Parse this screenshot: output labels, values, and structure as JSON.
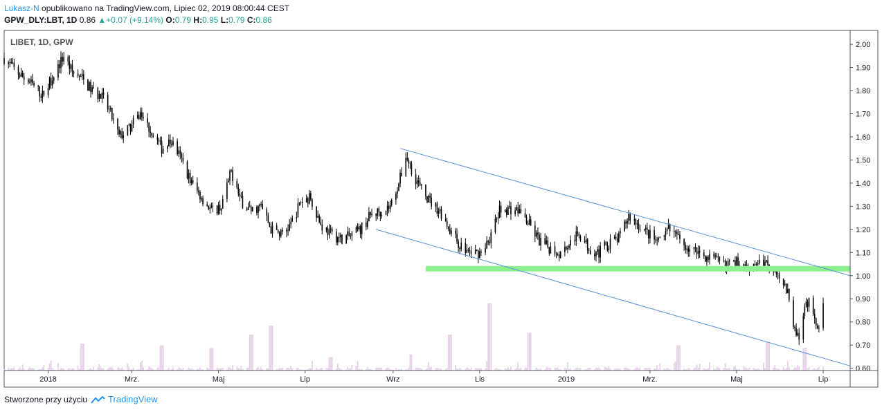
{
  "header": {
    "author": "Lukasz-N",
    "published_text": "opublikowano na TradingView.com, Lipiec 02, 2019 08:00:44 CEST",
    "symbol": "GPW_DLY:LBT, 1D",
    "last": "0.86",
    "change": "+0.07 (+9.14%)",
    "o_label": "O:",
    "o_value": "0.79",
    "h_label": "H:",
    "h_value": "0.95",
    "l_label": "L:",
    "l_value": "0.79",
    "c_label": "C:",
    "c_value": "0.86"
  },
  "footer": {
    "created_with": "Stworzone przy użyciu",
    "brand": "TradingView",
    "brand_icon": "tradingview-cloud-icon"
  },
  "chart_data": {
    "type": "candlestick",
    "title": "LIBET, 1D, GPW",
    "ylim": [
      0.59,
      2.06
    ],
    "y_ticks": [
      "2.00",
      "1.90",
      "1.80",
      "1.70",
      "1.60",
      "1.50",
      "1.40",
      "1.30",
      "1.20",
      "1.10",
      "1.00",
      "0.90",
      "0.80",
      "0.70",
      "0.60"
    ],
    "x_ticks": [
      "2018",
      "Mrz.",
      "Maj",
      "Lip",
      "Wrz",
      "Lis",
      "2019",
      "Mrz.",
      "Maj",
      "Lip"
    ],
    "x_start": "2017-12-01",
    "x_end": "2019-07-20",
    "tick_dates": [
      "2018-01-01",
      "2018-03-01",
      "2018-05-01",
      "2018-07-01",
      "2018-09-01",
      "2018-11-01",
      "2019-01-01",
      "2019-03-01",
      "2019-05-01",
      "2019-07-01"
    ],
    "close_path": [
      [
        "2017-12-01",
        1.94
      ],
      [
        "2017-12-10",
        1.88
      ],
      [
        "2017-12-20",
        1.83
      ],
      [
        "2017-12-28",
        1.78
      ],
      [
        "2018-01-05",
        1.87
      ],
      [
        "2018-01-12",
        1.95
      ],
      [
        "2018-01-18",
        1.88
      ],
      [
        "2018-01-25",
        1.85
      ],
      [
        "2018-02-01",
        1.8
      ],
      [
        "2018-02-08",
        1.77
      ],
      [
        "2018-02-14",
        1.7
      ],
      [
        "2018-02-20",
        1.6
      ],
      [
        "2018-02-28",
        1.64
      ],
      [
        "2018-03-07",
        1.7
      ],
      [
        "2018-03-15",
        1.62
      ],
      [
        "2018-03-22",
        1.55
      ],
      [
        "2018-03-29",
        1.58
      ],
      [
        "2018-04-05",
        1.5
      ],
      [
        "2018-04-12",
        1.4
      ],
      [
        "2018-04-19",
        1.34
      ],
      [
        "2018-04-26",
        1.28
      ],
      [
        "2018-05-03",
        1.3
      ],
      [
        "2018-05-10",
        1.45
      ],
      [
        "2018-05-17",
        1.32
      ],
      [
        "2018-05-24",
        1.28
      ],
      [
        "2018-05-31",
        1.3
      ],
      [
        "2018-06-07",
        1.2
      ],
      [
        "2018-06-14",
        1.18
      ],
      [
        "2018-06-21",
        1.22
      ],
      [
        "2018-06-28",
        1.32
      ],
      [
        "2018-07-05",
        1.34
      ],
      [
        "2018-07-12",
        1.22
      ],
      [
        "2018-07-19",
        1.18
      ],
      [
        "2018-07-26",
        1.16
      ],
      [
        "2018-08-02",
        1.17
      ],
      [
        "2018-08-09",
        1.2
      ],
      [
        "2018-08-16",
        1.26
      ],
      [
        "2018-08-23",
        1.28
      ],
      [
        "2018-08-30",
        1.3
      ],
      [
        "2018-09-06",
        1.42
      ],
      [
        "2018-09-10",
        1.52
      ],
      [
        "2018-09-14",
        1.46
      ],
      [
        "2018-09-20",
        1.38
      ],
      [
        "2018-09-27",
        1.32
      ],
      [
        "2018-10-04",
        1.28
      ],
      [
        "2018-10-11",
        1.2
      ],
      [
        "2018-10-18",
        1.13
      ],
      [
        "2018-10-25",
        1.1
      ],
      [
        "2018-11-01",
        1.1
      ],
      [
        "2018-11-08",
        1.16
      ],
      [
        "2018-11-15",
        1.28
      ],
      [
        "2018-11-22",
        1.29
      ],
      [
        "2018-11-29",
        1.28
      ],
      [
        "2018-12-06",
        1.22
      ],
      [
        "2018-12-13",
        1.15
      ],
      [
        "2018-12-20",
        1.12
      ],
      [
        "2018-12-27",
        1.1
      ],
      [
        "2019-01-03",
        1.14
      ],
      [
        "2019-01-10",
        1.18
      ],
      [
        "2019-01-17",
        1.12
      ],
      [
        "2019-01-24",
        1.1
      ],
      [
        "2019-01-31",
        1.14
      ],
      [
        "2019-02-07",
        1.16
      ],
      [
        "2019-02-14",
        1.26
      ],
      [
        "2019-02-21",
        1.22
      ],
      [
        "2019-02-28",
        1.18
      ],
      [
        "2019-03-07",
        1.14
      ],
      [
        "2019-03-14",
        1.2
      ],
      [
        "2019-03-21",
        1.16
      ],
      [
        "2019-03-28",
        1.12
      ],
      [
        "2019-04-04",
        1.1
      ],
      [
        "2019-04-11",
        1.08
      ],
      [
        "2019-04-18",
        1.06
      ],
      [
        "2019-04-25",
        1.05
      ],
      [
        "2019-05-02",
        1.06
      ],
      [
        "2019-05-09",
        1.04
      ],
      [
        "2019-05-16",
        1.06
      ],
      [
        "2019-05-23",
        1.05
      ],
      [
        "2019-05-30",
        1.02
      ],
      [
        "2019-06-06",
        0.92
      ],
      [
        "2019-06-10",
        0.8
      ],
      [
        "2019-06-14",
        0.72
      ],
      [
        "2019-06-18",
        0.85
      ],
      [
        "2019-06-21",
        0.9
      ],
      [
        "2019-06-25",
        0.8
      ],
      [
        "2019-06-28",
        0.79
      ],
      [
        "2019-07-01",
        0.86
      ]
    ],
    "volume_peaks": [
      [
        "2018-01-25",
        0.3
      ],
      [
        "2018-03-22",
        0.28
      ],
      [
        "2018-04-26",
        0.25
      ],
      [
        "2018-05-24",
        0.4
      ],
      [
        "2018-06-07",
        0.5
      ],
      [
        "2018-07-19",
        0.15
      ],
      [
        "2018-09-14",
        0.18
      ],
      [
        "2018-10-11",
        0.4
      ],
      [
        "2018-11-08",
        0.75
      ],
      [
        "2018-12-06",
        0.42
      ],
      [
        "2019-03-21",
        0.28
      ],
      [
        "2019-05-23",
        0.32
      ],
      [
        "2019-06-18",
        0.25
      ]
    ],
    "annotations": {
      "support_line": {
        "from": "2018-09-24",
        "to": "2019-07-20",
        "y": 1.03,
        "color": "#8ef08e"
      },
      "channel_upper": {
        "from": [
          "2018-09-06",
          1.55
        ],
        "to": [
          "2019-07-20",
          1.0
        ],
        "color": "#5b8fd9"
      },
      "channel_lower": {
        "from": [
          "2018-08-20",
          1.2
        ],
        "to": [
          "2019-07-20",
          0.61
        ],
        "color": "#5b8fd9"
      }
    },
    "colors": {
      "candles": "#000000",
      "volume": "#e6d0e8",
      "grid": "#e0e3eb",
      "axis": "#50535e"
    }
  }
}
